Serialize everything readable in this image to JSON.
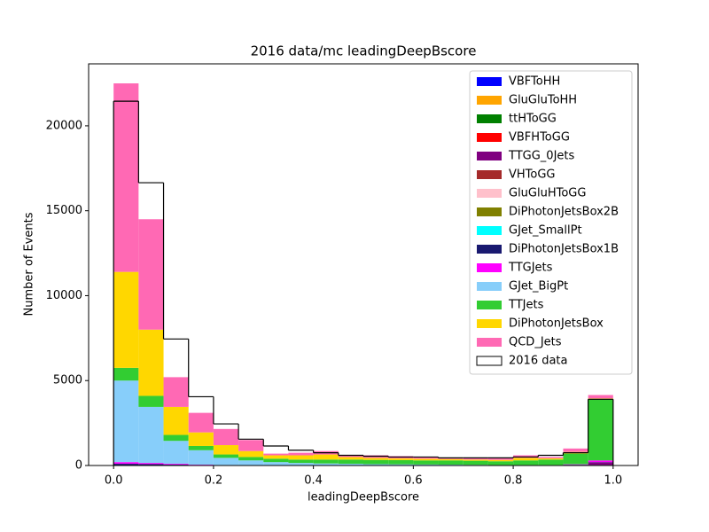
{
  "chart_data": {
    "type": "stacked_histogram",
    "title": "2016 data/mc leadingDeepBscore",
    "x_label": "leadingDeepBscore",
    "y_label": "Number of Events",
    "bins": [
      0,
      0.05,
      0.1,
      0.15,
      0.2,
      0.25,
      0.3,
      0.35,
      0.4,
      0.45,
      0.5,
      0.55,
      0.6,
      0.65,
      0.7,
      0.75,
      0.8,
      0.85,
      0.9,
      0.95,
      1
    ],
    "xlim": [
      -0.05,
      1.05
    ],
    "ylim": [
      0,
      23650
    ],
    "xticks": [
      {
        "value": 0,
        "label": "0.0"
      },
      0.2,
      0.4,
      0.6,
      0.8,
      {
        "value": 1,
        "label": "1.0"
      }
    ],
    "yticks": [
      0,
      5000,
      10000,
      15000,
      20000
    ],
    "legend": "upper right",
    "series": [
      {
        "name": "VBFToHH",
        "color": "#0000ff",
        "values": [
          0,
          0,
          0,
          0,
          0,
          0,
          0,
          0,
          0,
          0,
          0,
          0,
          0,
          0,
          0,
          0,
          0,
          0,
          0,
          0
        ]
      },
      {
        "name": "GluGluToHH",
        "color": "#ffa500",
        "values": [
          0,
          0,
          0,
          0,
          0,
          0,
          0,
          0,
          0,
          0,
          0,
          0,
          0,
          0,
          0,
          0,
          0,
          0,
          0,
          0
        ]
      },
      {
        "name": "ttHToGG",
        "color": "#008000",
        "values": [
          0,
          0,
          0,
          0,
          0,
          0,
          0,
          0,
          0,
          0,
          0,
          0,
          0,
          0,
          0,
          0,
          0,
          0,
          10,
          30
        ]
      },
      {
        "name": "VBFHToGG",
        "color": "#ff0000",
        "values": [
          0,
          0,
          0,
          0,
          0,
          0,
          0,
          0,
          0,
          0,
          0,
          0,
          0,
          0,
          0,
          0,
          0,
          0,
          0,
          0
        ]
      },
      {
        "name": "TTGG_0Jets",
        "color": "#800080",
        "values": [
          0,
          0,
          0,
          0,
          0,
          0,
          0,
          0,
          0,
          0,
          0,
          0,
          0,
          0,
          0,
          0,
          0,
          0,
          30,
          150
        ]
      },
      {
        "name": "VHToGG",
        "color": "#a52a2a",
        "values": [
          0,
          0,
          0,
          0,
          0,
          0,
          0,
          0,
          0,
          0,
          0,
          0,
          0,
          0,
          0,
          0,
          0,
          0,
          0,
          0
        ]
      },
      {
        "name": "GluGluHToGG",
        "color": "#ffc0cb",
        "values": [
          0,
          0,
          0,
          0,
          0,
          0,
          0,
          0,
          0,
          0,
          0,
          0,
          0,
          0,
          0,
          0,
          0,
          0,
          0,
          0
        ]
      },
      {
        "name": "DiPhotonJetsBox2B",
        "color": "#808000",
        "values": [
          0,
          0,
          0,
          0,
          0,
          0,
          0,
          0,
          0,
          0,
          0,
          0,
          0,
          0,
          0,
          0,
          0,
          0,
          0,
          0
        ]
      },
      {
        "name": "GJet_SmallPt",
        "color": "#00ffff",
        "values": [
          0,
          0,
          0,
          0,
          0,
          0,
          0,
          0,
          0,
          0,
          0,
          0,
          0,
          0,
          0,
          0,
          0,
          0,
          0,
          0
        ]
      },
      {
        "name": "DiPhotonJetsBox1B",
        "color": "#191970",
        "values": [
          100,
          80,
          50,
          30,
          20,
          10,
          10,
          10,
          10,
          10,
          10,
          10,
          10,
          10,
          10,
          10,
          10,
          10,
          10,
          20
        ]
      },
      {
        "name": "TTGJets",
        "color": "#ff00ff",
        "values": [
          100,
          70,
          50,
          20,
          10,
          10,
          10,
          10,
          10,
          10,
          10,
          10,
          10,
          10,
          10,
          10,
          10,
          10,
          20,
          100
        ]
      },
      {
        "name": "GJet_BigPt",
        "color": "#87cefa",
        "values": [
          4800,
          3300,
          1350,
          850,
          420,
          280,
          180,
          130,
          100,
          80,
          60,
          50,
          40,
          30,
          20,
          10,
          10,
          10,
          10,
          0
        ]
      },
      {
        "name": "TTJets",
        "color": "#32cd32",
        "values": [
          750,
          650,
          350,
          250,
          200,
          200,
          200,
          200,
          230,
          250,
          250,
          250,
          240,
          250,
          240,
          220,
          270,
          320,
          620,
          3600
        ]
      },
      {
        "name": "DiPhotonJetsBox",
        "color": "#ffd700",
        "values": [
          5650,
          3900,
          1650,
          800,
          550,
          350,
          200,
          250,
          300,
          150,
          120,
          100,
          100,
          80,
          70,
          80,
          150,
          70,
          100,
          50
        ]
      },
      {
        "name": "QCD_Jets",
        "color": "#ff69b4",
        "values": [
          11100,
          6500,
          1750,
          1150,
          950,
          650,
          100,
          150,
          200,
          100,
          150,
          130,
          100,
          70,
          100,
          120,
          150,
          80,
          200,
          200
        ]
      }
    ],
    "data_series": {
      "name": "2016 data",
      "color": "#000000",
      "values": [
        21450,
        16650,
        7450,
        4050,
        2450,
        1550,
        1150,
        900,
        750,
        600,
        550,
        500,
        500,
        450,
        450,
        450,
        500,
        600,
        750,
        3900
      ]
    }
  }
}
